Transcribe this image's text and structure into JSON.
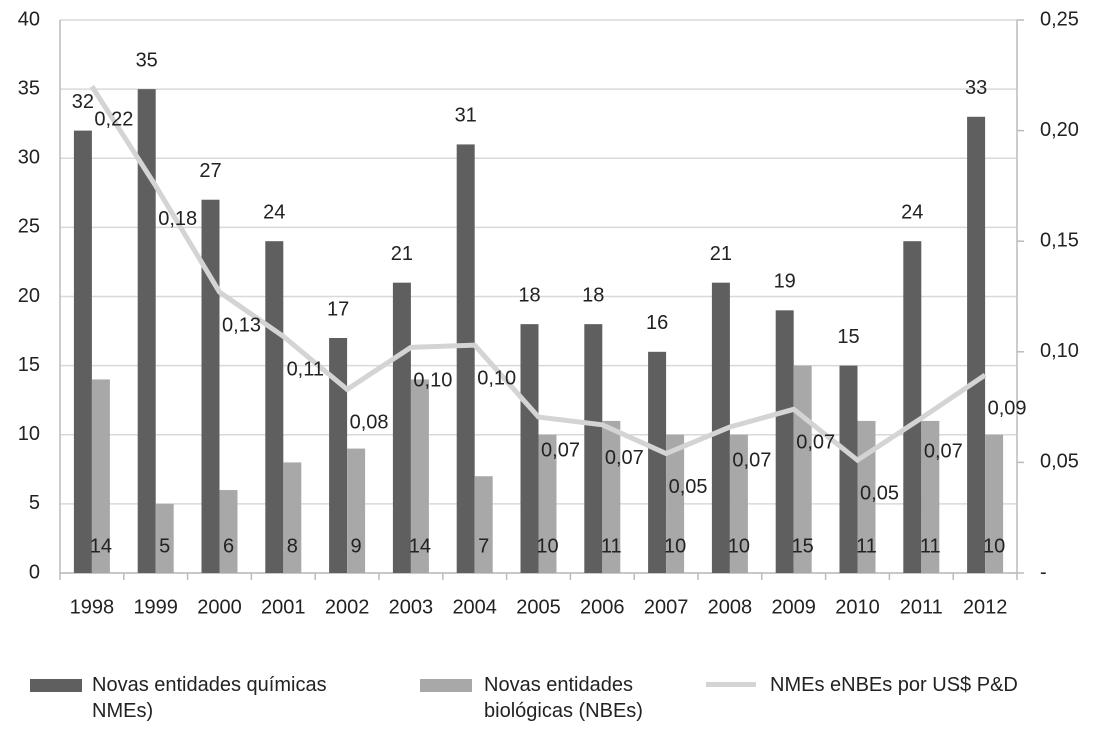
{
  "chart_data": {
    "type": "bar",
    "categories": [
      "1998",
      "1999",
      "2000",
      "2001",
      "2002",
      "2003",
      "2004",
      "2005",
      "2006",
      "2007",
      "2008",
      "2009",
      "2010",
      "2011",
      "2012"
    ],
    "series": [
      {
        "name": "Novas entidades químicas NMEs)",
        "color": "#5f5f5f",
        "values": [
          32,
          35,
          27,
          24,
          17,
          21,
          31,
          18,
          18,
          16,
          21,
          19,
          15,
          24,
          33
        ]
      },
      {
        "name": "Novas entidades biológicas (NBEs)",
        "color": "#a8a8a8",
        "values": [
          14,
          5,
          6,
          8,
          9,
          14,
          7,
          10,
          11,
          10,
          10,
          15,
          11,
          11,
          10
        ]
      },
      {
        "name": "NMEs eNBEs por US$ P&D",
        "color": "#d4d4d4",
        "type": "line",
        "axis": "y2",
        "values": [
          0.22,
          0.175,
          0.127,
          0.107,
          0.083,
          0.102,
          0.103,
          0.0705,
          0.067,
          0.054,
          0.066,
          0.074,
          0.051,
          0.07,
          0.0895
        ],
        "value_labels": [
          "0,22",
          "0,18",
          "0,13",
          "0,11",
          "0,08",
          "0,10",
          "0,10",
          "0,07",
          "0,07",
          "0,05",
          "0,07",
          "0,07",
          "0,05",
          "0,07",
          "0,09"
        ]
      }
    ],
    "ylim": [
      0,
      40
    ],
    "yticks": [
      0,
      5,
      10,
      15,
      20,
      25,
      30,
      35,
      40
    ],
    "y2lim": [
      0,
      0.25
    ],
    "y2ticks": [
      {
        "value": 0,
        "label": "-"
      },
      {
        "value": 0.05,
        "label": "0,05"
      },
      {
        "value": 0.1,
        "label": "0,10"
      },
      {
        "value": 0.15,
        "label": "0,15"
      },
      {
        "value": 0.2,
        "label": "0,20"
      },
      {
        "value": 0.25,
        "label": "0,25"
      }
    ],
    "grid": true
  }
}
